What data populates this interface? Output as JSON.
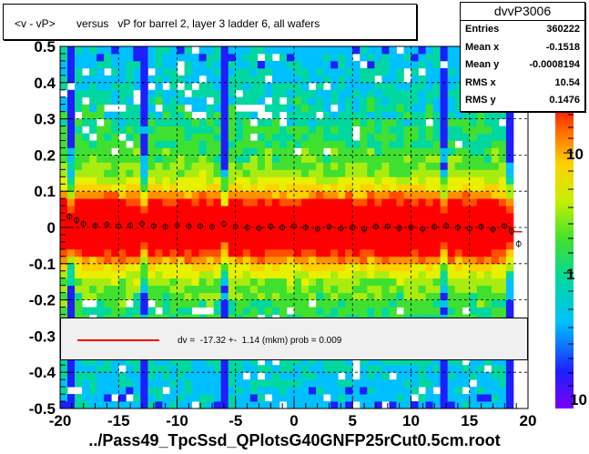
{
  "chart_data": {
    "type": "heatmap",
    "title": "<v - vP>       versus   vP for barrel 2, layer 3 ladder 6, all wafers",
    "xlabel": "../Pass49_TpcSsd_QPlotsG40GNFP25rCut0.5cm.root",
    "ylabel": "",
    "xlim": [
      -20,
      20
    ],
    "ylim": [
      -0.5,
      0.5
    ],
    "x_ticks": [
      "-20",
      "-15",
      "-10",
      "-5",
      "0",
      "5",
      "10",
      "15",
      "20"
    ],
    "y_ticks": [
      "-0.5",
      "-0.4",
      "-0.3",
      "-0.2",
      "-0.1",
      "0",
      "0.1",
      "0.2",
      "0.3",
      "0.4",
      "0.5"
    ],
    "z_scale": "log",
    "z_ticks": [
      "1",
      "10"
    ],
    "grid": true,
    "stats": {
      "name": "dvvP3006",
      "rows": [
        {
          "label": "Entries",
          "value": "360222"
        },
        {
          "label": "Mean x",
          "value": "-0.1518"
        },
        {
          "label": "Mean y",
          "value": "-0.0008194"
        },
        {
          "label": "RMS x",
          "value": "10.54"
        },
        {
          "label": "RMS y",
          "value": "0.1476"
        }
      ]
    },
    "fit": {
      "text": "dv =  -17.32 +-  1.14 (mkm) prob = 0.009",
      "color": "#ff0000"
    },
    "profile_points": {
      "x": [
        -19.2,
        -18.6,
        -18,
        -17,
        -16,
        -15,
        -14,
        -13,
        -12,
        -11,
        -10,
        -9,
        -8,
        -7,
        -6,
        -5,
        -4,
        -3,
        -2,
        -1,
        0,
        1,
        2,
        3,
        4,
        5,
        6,
        7,
        8,
        9,
        10,
        11,
        12,
        13,
        14,
        15,
        16,
        17,
        18,
        18.6,
        19.2
      ],
      "y": [
        0.03,
        0.02,
        0.01,
        0.005,
        0.008,
        0.004,
        0.006,
        0.01,
        0.004,
        0.002,
        0.006,
        0.003,
        0.004,
        0.002,
        0.01,
        0.002,
        0.0,
        -0.002,
        0.003,
        0.0,
        0.004,
        0.0,
        -0.004,
        0.002,
        -0.003,
        0.0,
        -0.004,
        0.002,
        0.003,
        -0.002,
        0.0,
        -0.004,
        0.002,
        0.005,
        0.0,
        -0.003,
        0.002,
        -0.005,
        0.004,
        -0.01,
        -0.045
      ]
    },
    "colors": {
      "frame": "#000000",
      "fit_line": "#ff0000",
      "profile": "#000000"
    }
  }
}
